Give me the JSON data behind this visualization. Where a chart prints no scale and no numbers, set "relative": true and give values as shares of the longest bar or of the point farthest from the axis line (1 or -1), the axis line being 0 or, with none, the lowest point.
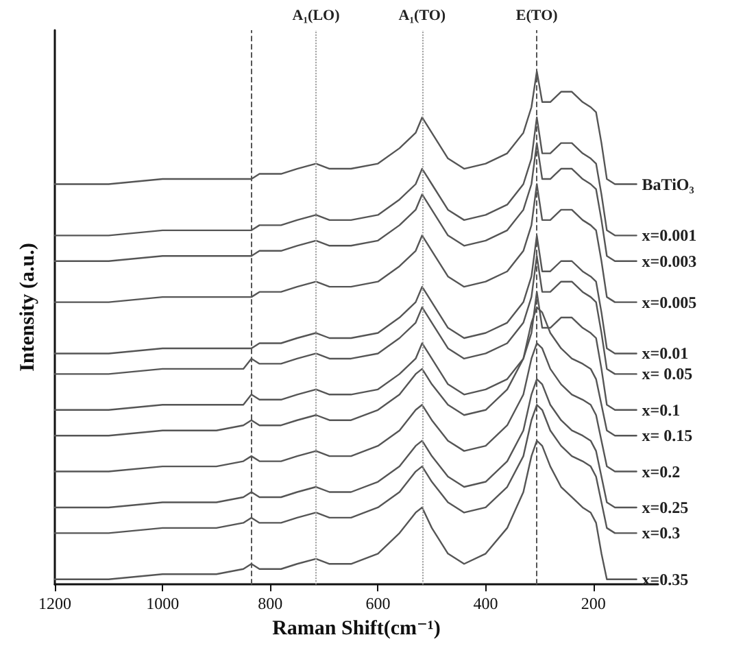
{
  "chart_data": {
    "type": "line",
    "relative": true,
    "xlabel": "Raman Shift(cm⁻¹)",
    "ylabel": "Intensity (a.u.)",
    "x": [
      1200,
      1100,
      1000,
      900,
      850,
      835,
      820,
      780,
      750,
      715,
      690,
      650,
      600,
      560,
      530,
      518,
      500,
      470,
      440,
      400,
      360,
      330,
      315,
      305,
      295,
      280,
      260,
      240,
      220,
      205,
      195,
      185,
      175,
      160,
      120
    ],
    "xlim": [
      1200,
      80
    ],
    "xticks": [
      1200,
      1000,
      800,
      600,
      400,
      200
    ],
    "grid": false,
    "legend": false,
    "marker": "none",
    "line_style": "solid",
    "series": [
      {
        "name": "BaTiO₃",
        "color": "#555555",
        "values": [
          0.78,
          0.78,
          0.79,
          0.79,
          0.79,
          0.79,
          0.8,
          0.8,
          0.81,
          0.82,
          0.81,
          0.81,
          0.82,
          0.85,
          0.88,
          0.91,
          0.88,
          0.83,
          0.81,
          0.82,
          0.84,
          0.88,
          0.93,
          1,
          0.94,
          0.94,
          0.96,
          0.96,
          0.94,
          0.93,
          0.92,
          0.86,
          0.79,
          0.78,
          0.78
        ]
      },
      {
        "name": "x=0.001",
        "color": "#555555",
        "values": [
          0.68,
          0.68,
          0.69,
          0.69,
          0.69,
          0.69,
          0.7,
          0.7,
          0.71,
          0.72,
          0.71,
          0.71,
          0.72,
          0.75,
          0.78,
          0.81,
          0.78,
          0.73,
          0.71,
          0.72,
          0.74,
          0.78,
          0.83,
          0.91,
          0.84,
          0.84,
          0.86,
          0.86,
          0.84,
          0.83,
          0.82,
          0.76,
          0.69,
          0.68,
          0.68
        ]
      },
      {
        "name": "x=0.003",
        "color": "#555555",
        "values": [
          0.63,
          0.63,
          0.64,
          0.64,
          0.64,
          0.64,
          0.65,
          0.65,
          0.66,
          0.67,
          0.66,
          0.66,
          0.67,
          0.7,
          0.73,
          0.76,
          0.73,
          0.68,
          0.66,
          0.67,
          0.69,
          0.73,
          0.78,
          0.86,
          0.79,
          0.79,
          0.81,
          0.81,
          0.79,
          0.78,
          0.77,
          0.71,
          0.64,
          0.63,
          0.63
        ]
      },
      {
        "name": "x=0.005",
        "color": "#555555",
        "values": [
          0.55,
          0.55,
          0.56,
          0.56,
          0.56,
          0.56,
          0.57,
          0.57,
          0.58,
          0.59,
          0.58,
          0.58,
          0.59,
          0.62,
          0.65,
          0.68,
          0.65,
          0.6,
          0.58,
          0.59,
          0.61,
          0.65,
          0.7,
          0.78,
          0.71,
          0.71,
          0.73,
          0.73,
          0.71,
          0.7,
          0.69,
          0.63,
          0.56,
          0.55,
          0.55
        ]
      },
      {
        "name": "x=0.01",
        "color": "#555555",
        "values": [
          0.45,
          0.45,
          0.46,
          0.46,
          0.46,
          0.46,
          0.47,
          0.47,
          0.48,
          0.49,
          0.48,
          0.48,
          0.49,
          0.52,
          0.55,
          0.58,
          0.55,
          0.5,
          0.48,
          0.49,
          0.51,
          0.55,
          0.6,
          0.68,
          0.61,
          0.61,
          0.63,
          0.63,
          0.61,
          0.6,
          0.59,
          0.53,
          0.46,
          0.45,
          0.45
        ]
      },
      {
        "name": "x= 0.05",
        "color": "#555555",
        "values": [
          0.41,
          0.41,
          0.42,
          0.42,
          0.42,
          0.44,
          0.43,
          0.43,
          0.44,
          0.45,
          0.44,
          0.44,
          0.45,
          0.48,
          0.51,
          0.54,
          0.51,
          0.46,
          0.44,
          0.45,
          0.47,
          0.51,
          0.56,
          0.64,
          0.57,
          0.57,
          0.59,
          0.59,
          0.57,
          0.56,
          0.55,
          0.49,
          0.42,
          0.41,
          0.41
        ]
      },
      {
        "name": "x=0.1",
        "color": "#555555",
        "values": [
          0.34,
          0.34,
          0.35,
          0.35,
          0.35,
          0.37,
          0.36,
          0.36,
          0.37,
          0.38,
          0.37,
          0.37,
          0.38,
          0.41,
          0.44,
          0.47,
          0.44,
          0.39,
          0.37,
          0.38,
          0.4,
          0.44,
          0.49,
          0.57,
          0.5,
          0.5,
          0.52,
          0.52,
          0.5,
          0.49,
          0.48,
          0.42,
          0.35,
          0.34,
          0.34
        ]
      },
      {
        "name": "x= 0.15",
        "color": "#555555",
        "values": [
          0.29,
          0.29,
          0.3,
          0.3,
          0.31,
          0.32,
          0.31,
          0.31,
          0.32,
          0.33,
          0.32,
          0.32,
          0.34,
          0.37,
          0.41,
          0.42,
          0.39,
          0.35,
          0.33,
          0.34,
          0.38,
          0.44,
          0.51,
          0.54,
          0.53,
          0.49,
          0.46,
          0.44,
          0.43,
          0.42,
          0.4,
          0.35,
          0.3,
          0.29,
          0.29
        ]
      },
      {
        "name": "x=0.2",
        "color": "#555555",
        "values": [
          0.22,
          0.22,
          0.23,
          0.23,
          0.24,
          0.25,
          0.24,
          0.24,
          0.25,
          0.26,
          0.25,
          0.25,
          0.27,
          0.3,
          0.34,
          0.35,
          0.32,
          0.28,
          0.26,
          0.27,
          0.31,
          0.37,
          0.44,
          0.47,
          0.46,
          0.42,
          0.39,
          0.37,
          0.36,
          0.35,
          0.33,
          0.28,
          0.23,
          0.22,
          0.22
        ]
      },
      {
        "name": "x=0.25",
        "color": "#555555",
        "values": [
          0.15,
          0.15,
          0.16,
          0.16,
          0.17,
          0.18,
          0.17,
          0.17,
          0.18,
          0.19,
          0.18,
          0.18,
          0.2,
          0.23,
          0.27,
          0.28,
          0.25,
          0.21,
          0.19,
          0.2,
          0.24,
          0.3,
          0.37,
          0.4,
          0.39,
          0.35,
          0.32,
          0.3,
          0.29,
          0.28,
          0.26,
          0.21,
          0.16,
          0.15,
          0.15
        ]
      },
      {
        "name": "x=0.3",
        "color": "#555555",
        "values": [
          0.1,
          0.1,
          0.11,
          0.11,
          0.12,
          0.13,
          0.12,
          0.12,
          0.13,
          0.14,
          0.13,
          0.13,
          0.15,
          0.18,
          0.22,
          0.23,
          0.2,
          0.16,
          0.14,
          0.15,
          0.19,
          0.25,
          0.32,
          0.35,
          0.34,
          0.3,
          0.27,
          0.25,
          0.24,
          0.23,
          0.21,
          0.16,
          0.11,
          0.1,
          0.1
        ]
      },
      {
        "name": "x=0.35",
        "color": "#555555",
        "values": [
          0.01,
          0.01,
          0.02,
          0.02,
          0.03,
          0.04,
          0.03,
          0.03,
          0.04,
          0.05,
          0.04,
          0.04,
          0.06,
          0.1,
          0.14,
          0.15,
          0.11,
          0.06,
          0.04,
          0.06,
          0.11,
          0.18,
          0.25,
          0.28,
          0.27,
          0.23,
          0.19,
          0.17,
          0.15,
          0.14,
          0.12,
          0.06,
          0.01,
          0.01,
          0.01
        ]
      }
    ],
    "ref_lines": [
      {
        "axis": "x",
        "value": 835,
        "color": "#555555",
        "line_style": "dashed"
      },
      {
        "axis": "x",
        "value": 715,
        "label": "A₁(LO)",
        "color": "#999999",
        "line_style": "dotted"
      },
      {
        "axis": "x",
        "value": 518,
        "label": "A₁(TO)",
        "color": "#999999",
        "line_style": "dotted"
      },
      {
        "axis": "x",
        "value": 305,
        "label": "E(TO)",
        "color": "#555555",
        "line_style": "dashed"
      }
    ]
  }
}
